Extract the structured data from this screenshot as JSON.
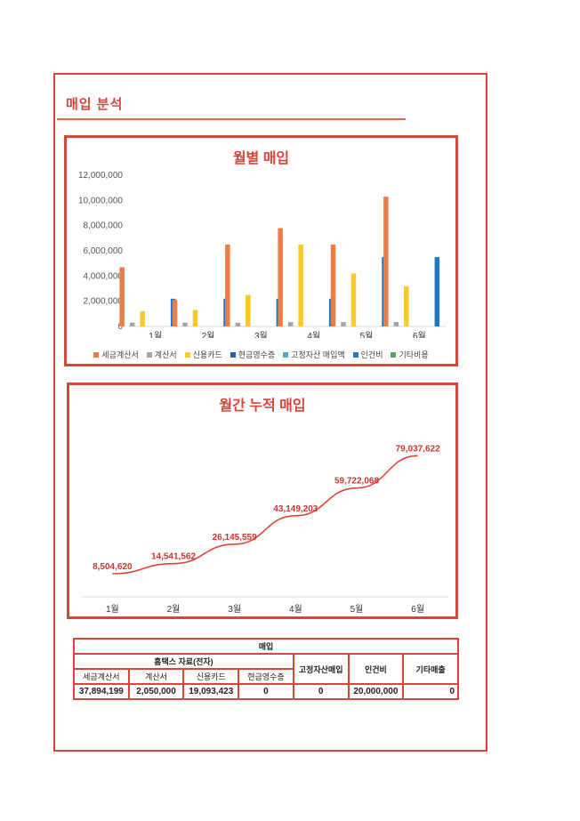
{
  "page": {
    "title": "매입 분석"
  },
  "monthly_chart": {
    "title": "월별 매입",
    "legend": [
      {
        "label": "세금계산서",
        "color": "#ed7d45"
      },
      {
        "label": "계산서",
        "color": "#a5a5a5"
      },
      {
        "label": "신용카드",
        "color": "#f7c929"
      },
      {
        "label": "현금영수증",
        "color": "#2a62a8"
      },
      {
        "label": "고정자산 매입액",
        "color": "#4aacc6"
      },
      {
        "label": "인건비",
        "color": "#1f78c1"
      },
      {
        "label": "기타비용",
        "color": "#5aa45a"
      }
    ]
  },
  "cumulative_chart": {
    "title": "월간 누적 매입",
    "line_color": "#d9453a"
  },
  "chart_data": [
    {
      "type": "bar",
      "title": "월별 매입",
      "categories": [
        "1월",
        "2월",
        "3월",
        "4월",
        "5월",
        "6월"
      ],
      "ylim": [
        0,
        12000000
      ],
      "yticks": [
        "0",
        "2,000,000",
        "4,000,000",
        "6,000,000",
        "8,000,000",
        "10,000,000",
        "12,000,000"
      ],
      "series": [
        {
          "name": "세금계산서",
          "values": [
            4700000,
            2100000,
            6500000,
            7800000,
            6500000,
            10300000
          ]
        },
        {
          "name": "계산서",
          "values": [
            300000,
            300000,
            300000,
            350000,
            350000,
            350000
          ]
        },
        {
          "name": "신용카드",
          "values": [
            1200000,
            1300000,
            2500000,
            6500000,
            4200000,
            3200000
          ]
        },
        {
          "name": "현금영수증",
          "values": [
            0,
            0,
            0,
            0,
            0,
            0
          ]
        },
        {
          "name": "고정자산 매입액",
          "values": [
            0,
            0,
            0,
            0,
            0,
            0
          ]
        },
        {
          "name": "인건비",
          "values": [
            2200000,
            2200000,
            2200000,
            2200000,
            5500000,
            5500000
          ]
        },
        {
          "name": "기타비용",
          "values": [
            0,
            0,
            0,
            0,
            0,
            0
          ]
        }
      ]
    },
    {
      "type": "line",
      "title": "월간 누적 매입",
      "categories": [
        "1월",
        "2월",
        "3월",
        "4월",
        "5월",
        "6월"
      ],
      "values": [
        8504620,
        14541562,
        26145559,
        43149203,
        59722068,
        79037622
      ],
      "labels": [
        "8,504,620",
        "14,541,562",
        "26,145,559",
        "43,149,203",
        "59,722,068",
        "79,037,622"
      ]
    }
  ],
  "summary_table": {
    "header": "매입",
    "hometax_header": "홈택스 자료(전자)",
    "columns": [
      "세금계산서",
      "계산서",
      "신용카드",
      "현금영수증",
      "고정자산매입",
      "인건비",
      "기타매출"
    ],
    "values": [
      "37,894,199",
      "2,050,000",
      "19,093,423",
      "0",
      "0",
      "20,000,000",
      "0"
    ]
  }
}
